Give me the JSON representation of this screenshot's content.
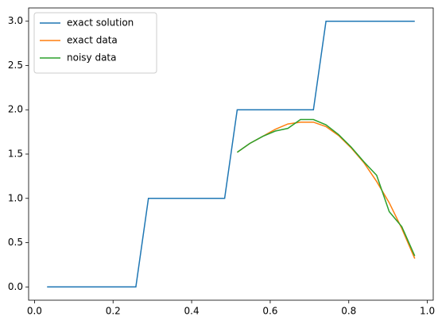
{
  "chart_data": {
    "type": "line",
    "xlim": [
      -0.015,
      1.015
    ],
    "ylim": [
      -0.15,
      3.15
    ],
    "xticks": [
      {
        "value": 0,
        "label": "0.0"
      },
      0.2,
      0.4,
      0.6,
      0.8,
      {
        "value": 1,
        "label": "1.0"
      }
    ],
    "yticks": [
      {
        "value": 0,
        "label": "0.0"
      },
      0.5,
      {
        "value": 1,
        "label": "1.0"
      },
      1.5,
      {
        "value": 2,
        "label": "2.0"
      },
      2.5,
      {
        "value": 3,
        "label": "3.0"
      }
    ],
    "legend": "upper left",
    "series": [
      {
        "name": "exact solution",
        "color": "#1f77b4",
        "x": [
          0.032,
          0.065,
          0.097,
          0.129,
          0.161,
          0.194,
          0.226,
          0.258,
          0.29,
          0.323,
          0.355,
          0.387,
          0.419,
          0.452,
          0.484,
          0.516,
          0.548,
          0.581,
          0.613,
          0.645,
          0.677,
          0.71,
          0.742,
          0.774,
          0.806,
          0.839,
          0.871,
          0.903,
          0.935,
          0.968
        ],
        "values": [
          0,
          0,
          0,
          0,
          0,
          0,
          0,
          0,
          1,
          1,
          1,
          1,
          1,
          1,
          1,
          2,
          2,
          2,
          2,
          2,
          2,
          2,
          3,
          3,
          3,
          3,
          3,
          3,
          3,
          3
        ]
      },
      {
        "name": "exact data",
        "color": "#ff7f0e",
        "x": [
          0.516,
          0.548,
          0.581,
          0.613,
          0.645,
          0.677,
          0.71,
          0.742,
          0.774,
          0.806,
          0.839,
          0.871,
          0.903,
          0.935,
          0.968
        ],
        "values": [
          1.52,
          1.62,
          1.7,
          1.78,
          1.84,
          1.86,
          1.86,
          1.81,
          1.71,
          1.57,
          1.4,
          1.19,
          0.95,
          0.66,
          0.32
        ]
      },
      {
        "name": "noisy data",
        "color": "#2ca02c",
        "x": [
          0.516,
          0.548,
          0.581,
          0.613,
          0.645,
          0.677,
          0.71,
          0.742,
          0.774,
          0.806,
          0.839,
          0.871,
          0.903,
          0.935,
          0.968
        ],
        "values": [
          1.52,
          1.62,
          1.7,
          1.76,
          1.79,
          1.89,
          1.89,
          1.83,
          1.72,
          1.58,
          1.41,
          1.26,
          0.85,
          0.68,
          0.35
        ]
      }
    ]
  }
}
